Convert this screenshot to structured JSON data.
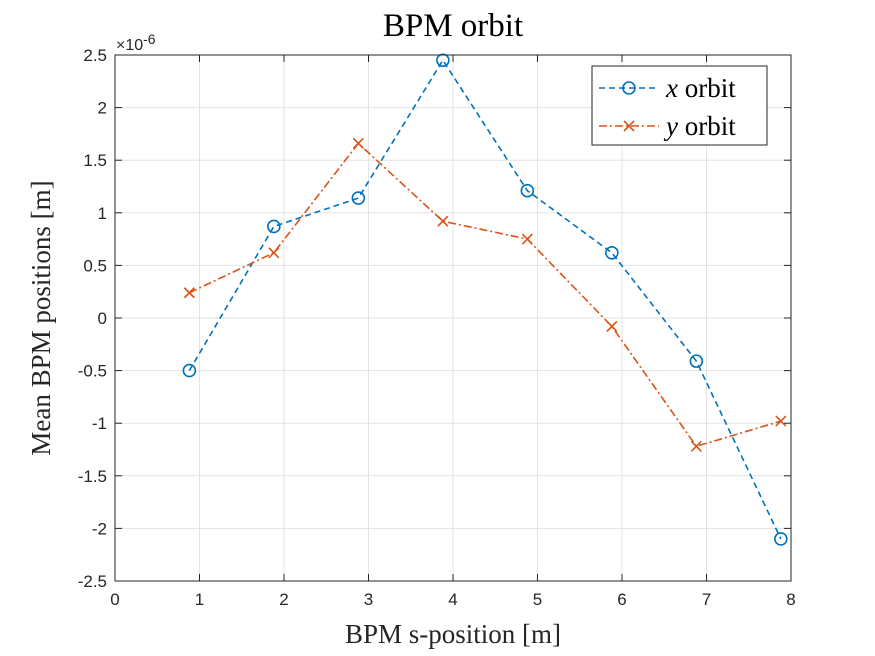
{
  "chart_data": {
    "type": "line",
    "title": "BPM orbit",
    "xlabel": "BPM s-position [m]",
    "ylabel": "Mean BPM positions [m]",
    "xlim": [
      0,
      8
    ],
    "ylim": [
      -2.5e-06,
      2.5e-06
    ],
    "x_ticks": [
      0,
      1,
      2,
      3,
      4,
      5,
      6,
      7,
      8
    ],
    "y_ticks": [
      -2.5,
      -2,
      -1.5,
      -1,
      -0.5,
      0,
      0.5,
      1,
      1.5,
      2,
      2.5
    ],
    "y_tick_labels": [
      "-2.5",
      "-2",
      "-1.5",
      "-1",
      "-0.5",
      "0",
      "0.5",
      "1",
      "1.5",
      "2",
      "2.5"
    ],
    "y_exponent_label": "×10-6",
    "y_exponent": {
      "base": "×10",
      "power": "-6"
    },
    "grid": true,
    "legend_position": "top-right",
    "series": [
      {
        "name": "x orbit",
        "legend_var": "x",
        "legend_rest": " orbit",
        "color": "#0072BD",
        "marker": "circle",
        "line_style": "dashed",
        "x": [
          0.88,
          1.88,
          2.88,
          3.88,
          4.88,
          5.88,
          6.88,
          7.88
        ],
        "y": [
          -5e-07,
          8.7e-07,
          1.14e-06,
          2.45e-06,
          1.21e-06,
          6.2e-07,
          -4.1e-07,
          -2.1e-06
        ]
      },
      {
        "name": "y orbit",
        "legend_var": "y",
        "legend_rest": " orbit",
        "color": "#D95319",
        "marker": "x",
        "line_style": "dashdot",
        "x": [
          0.88,
          1.88,
          2.88,
          3.88,
          4.88,
          5.88,
          6.88,
          7.88
        ],
        "y": [
          2.4e-07,
          6.2e-07,
          1.66e-06,
          9.2e-07,
          7.5e-07,
          -8e-08,
          -1.22e-06,
          -9.8e-07
        ]
      }
    ]
  }
}
